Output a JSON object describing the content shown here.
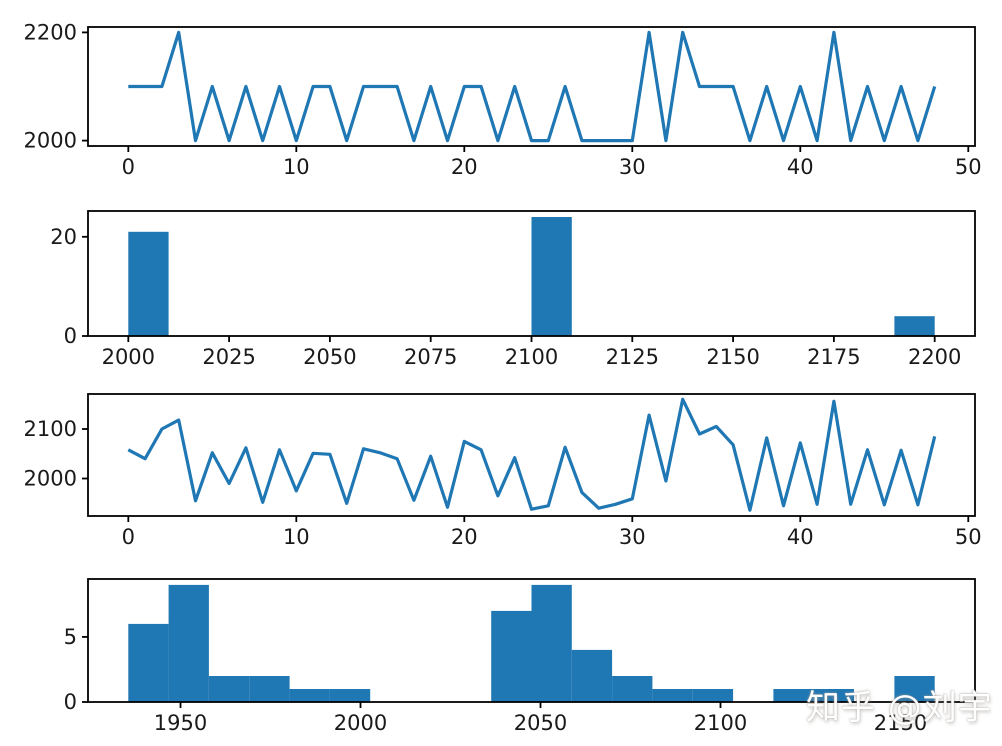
{
  "figure": {
    "background": "#ffffff",
    "line_color": "#1f77b4",
    "bar_color": "#1f77b4",
    "axis_color": "#000000",
    "tick_label_color": "#1a1a1a",
    "watermark": "知乎 @刘宇"
  },
  "chart_data": [
    {
      "id": "series-line",
      "type": "line",
      "x_start": 0,
      "y": [
        2100,
        2100,
        2100,
        2200,
        2000,
        2100,
        2000,
        2100,
        2000,
        2100,
        2000,
        2100,
        2100,
        2000,
        2100,
        2100,
        2100,
        2000,
        2100,
        2000,
        2100,
        2100,
        2000,
        2100,
        2000,
        2000,
        2100,
        2000,
        2000,
        2000,
        2000,
        2200,
        2000,
        2200,
        2100,
        2100,
        2100,
        2000,
        2100,
        2000,
        2100,
        2000,
        2200,
        2000,
        2100,
        2000,
        2100,
        2000,
        2100
      ],
      "xlim": [
        -2.4,
        50.4
      ],
      "ylim": [
        1990,
        2210
      ],
      "xticks": [
        0,
        10,
        20,
        30,
        40,
        50
      ],
      "yticks": [
        2000,
        2200
      ],
      "grid": false,
      "legend": "none"
    },
    {
      "id": "series-histogram",
      "type": "bar",
      "histogram": true,
      "bin_start": 2000,
      "bin_width": 10,
      "counts": [
        21,
        0,
        0,
        0,
        0,
        0,
        0,
        0,
        0,
        0,
        24,
        0,
        0,
        0,
        0,
        0,
        0,
        0,
        0,
        4
      ],
      "xlim": [
        1990,
        2210
      ],
      "ylim": [
        0,
        25.2
      ],
      "xticks": [
        2000,
        2025,
        2050,
        2075,
        2100,
        2125,
        2150,
        2175,
        2200
      ],
      "yticks": [
        0,
        20
      ],
      "grid": false,
      "legend": "none"
    },
    {
      "id": "noisy-series-line",
      "type": "line",
      "x_start": 0,
      "y": [
        2058,
        2040,
        2100,
        2118,
        1955,
        2052,
        1990,
        2062,
        1952,
        2058,
        1975,
        2051,
        2049,
        1950,
        2060,
        2052,
        2040,
        1956,
        2045,
        1942,
        2075,
        2058,
        1965,
        2042,
        1938,
        1945,
        2063,
        1972,
        1940,
        1948,
        1959,
        2128,
        1995,
        2160,
        2090,
        2105,
        2068,
        1936,
        2082,
        1945,
        2072,
        1948,
        2156,
        1948,
        2058,
        1947,
        2057,
        1947,
        2085
      ],
      "xlim": [
        -2.4,
        50.4
      ],
      "ylim": [
        1924.3,
        2170.7
      ],
      "xticks": [
        0,
        10,
        20,
        30,
        40,
        50
      ],
      "yticks": [
        2000,
        2100
      ],
      "grid": false,
      "legend": "none"
    },
    {
      "id": "noisy-series-histogram",
      "type": "bar",
      "histogram": true,
      "bin_start": 1935.5,
      "bin_width": 11.2,
      "counts": [
        6,
        9,
        2,
        2,
        1,
        1,
        0,
        0,
        0,
        7,
        9,
        4,
        2,
        1,
        1,
        0,
        1,
        1,
        0,
        2
      ],
      "xlim": [
        1924.3,
        2170.7
      ],
      "ylim": [
        0,
        9.45
      ],
      "xticks": [
        1950,
        2000,
        2050,
        2100,
        2150
      ],
      "yticks": [
        0,
        5
      ],
      "grid": false,
      "legend": "none"
    }
  ]
}
